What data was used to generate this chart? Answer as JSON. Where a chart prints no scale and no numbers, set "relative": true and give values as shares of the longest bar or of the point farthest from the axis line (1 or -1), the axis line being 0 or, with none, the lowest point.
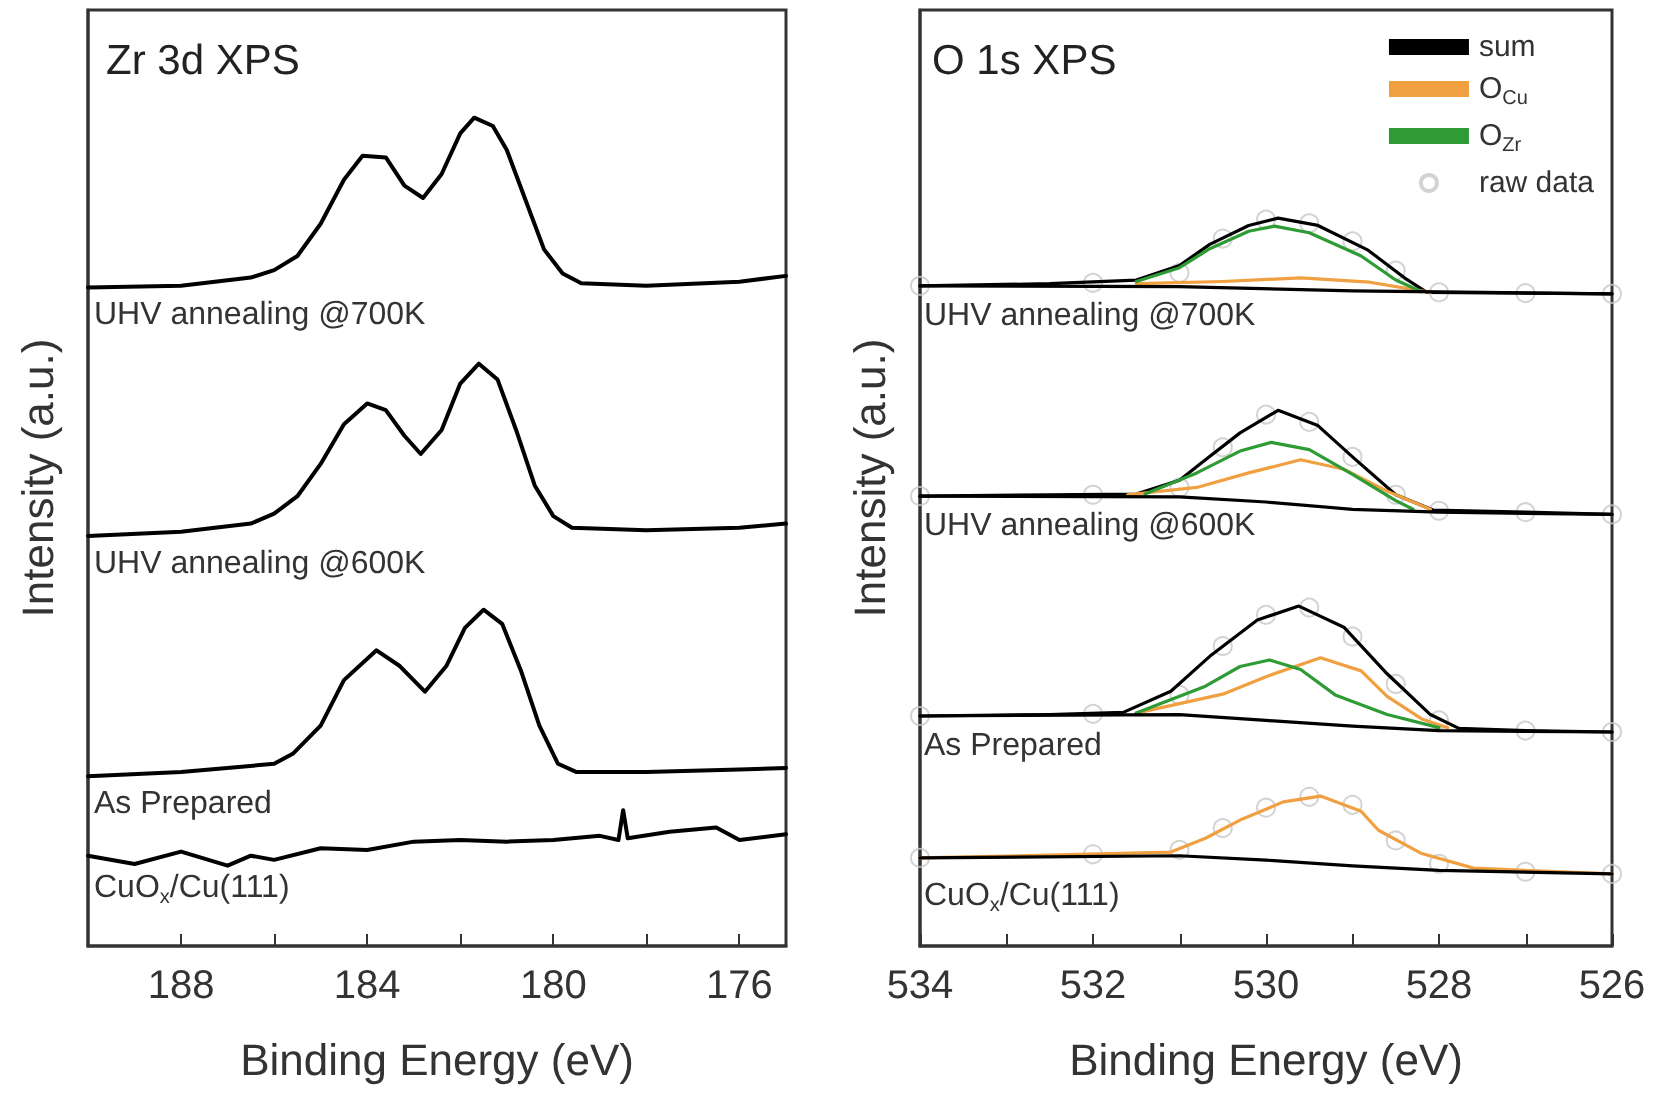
{
  "chart_data": [
    {
      "type": "line",
      "title": "Zr 3d XPS",
      "xlabel": "Binding Energy (eV)",
      "ylabel": "Intensity (a.u.)",
      "relative": true,
      "xlim": [
        190,
        175
      ],
      "xticks": [
        188,
        {
          "value": 186,
          "label": null
        },
        184,
        {
          "value": 182,
          "label": null
        },
        180,
        {
          "value": 178,
          "label": null
        },
        176
      ],
      "series": [
        {
          "name": "UHV annealing @700K",
          "color": "#000000",
          "x": [
            190,
            188,
            186.5,
            186,
            185.5,
            185,
            184.5,
            184.1,
            183.6,
            183.2,
            182.8,
            182.4,
            182,
            181.7,
            181.3,
            181,
            180.6,
            180.2,
            179.8,
            179.4,
            178,
            176,
            175
          ],
          "values": [
            0.795,
            0.797,
            0.807,
            0.816,
            0.833,
            0.872,
            0.925,
            0.954,
            0.952,
            0.918,
            0.903,
            0.932,
            0.981,
            1.0,
            0.99,
            0.961,
            0.901,
            0.841,
            0.812,
            0.8,
            0.797,
            0.802,
            0.809
          ]
        },
        {
          "name": "UHV annealing @600K",
          "color": "#000000",
          "x": [
            190,
            188,
            186.5,
            186,
            185.5,
            185,
            184.5,
            184,
            183.6,
            183.2,
            182.85,
            182.4,
            182,
            181.6,
            181.2,
            180.8,
            180.4,
            180,
            179.6,
            178,
            176,
            175
          ],
          "values": [
            0.495,
            0.5,
            0.51,
            0.522,
            0.543,
            0.582,
            0.63,
            0.655,
            0.647,
            0.616,
            0.594,
            0.623,
            0.679,
            0.703,
            0.684,
            0.623,
            0.556,
            0.519,
            0.505,
            0.502,
            0.505,
            0.51
          ]
        },
        {
          "name": "As Prepared",
          "color": "#000000",
          "x": [
            190,
            188,
            186,
            185.6,
            185,
            184.5,
            183.8,
            183.3,
            182.76,
            182.3,
            181.9,
            181.5,
            181.1,
            180.7,
            180.3,
            179.9,
            179.5,
            178,
            176,
            175
          ],
          "values": [
            0.205,
            0.21,
            0.22,
            0.232,
            0.266,
            0.321,
            0.357,
            0.338,
            0.307,
            0.338,
            0.384,
            0.406,
            0.389,
            0.333,
            0.266,
            0.22,
            0.21,
            0.21,
            0.213,
            0.215
          ]
        },
        {
          "name": "CuO$_{x}$/Cu(111)",
          "color": "#000000",
          "x": [
            190,
            189,
            188,
            187,
            186.5,
            186,
            185,
            184,
            183,
            182,
            181,
            180,
            179,
            178.6,
            178.5,
            178.4,
            177.5,
            176.5,
            176,
            175
          ],
          "values": [
            0.109,
            0.099,
            0.114,
            0.097,
            0.109,
            0.104,
            0.118,
            0.116,
            0.126,
            0.128,
            0.126,
            0.128,
            0.133,
            0.128,
            0.164,
            0.13,
            0.138,
            0.143,
            0.128,
            0.135
          ]
        }
      ]
    },
    {
      "type": "line",
      "title": "O 1s XPS",
      "xlabel": "Binding Energy (eV)",
      "ylabel": "Intensity (a.u.)",
      "relative": true,
      "legend": "top right",
      "xlim": [
        534,
        526
      ],
      "xticks": [
        534,
        {
          "value": 533,
          "label": null
        },
        532,
        {
          "value": 531,
          "label": null
        },
        530,
        {
          "value": 529,
          "label": null
        },
        528,
        {
          "value": 527,
          "label": null
        },
        526
      ],
      "annotations": [
        "UHV annealing @700K",
        "UHV annealing @600K",
        "As Prepared",
        "CuO$_{x}$/Cu(111)"
      ],
      "series": [
        {
          "name": "sum",
          "color": "#000000",
          "x": [
            534,
            532.5,
            531.5,
            531,
            530.65,
            530.2,
            529.86,
            529.4,
            528.82,
            528.4,
            528.14,
            527,
            526
          ],
          "values": [
            0.907,
            0.91,
            0.915,
            0.935,
            0.964,
            0.99,
            1.0,
            0.99,
            0.956,
            0.918,
            0.898,
            0.897,
            0.896
          ]
        },
        {
          "name": "O$_{Cu}$",
          "color": "#f0a040",
          "x": [
            531.5,
            530.5,
            529.6,
            528.8,
            528.1
          ],
          "values": [
            0.91,
            0.913,
            0.918,
            0.912,
            0.898
          ]
        },
        {
          "name": "O$_{Zr}$",
          "color": "#2e9b35",
          "x": [
            531.5,
            531,
            530.65,
            530.2,
            529.9,
            529.5,
            528.9,
            528.5,
            528.2
          ],
          "values": [
            0.913,
            0.932,
            0.958,
            0.982,
            0.989,
            0.98,
            0.948,
            0.915,
            0.899
          ]
        },
        {
          "name": "raw data",
          "type": "scatter",
          "marker": "circle",
          "color": "#c8c8c8",
          "x": [
            534,
            532,
            531,
            530.5,
            530,
            529.5,
            529,
            528.5,
            528,
            527,
            526
          ],
          "values": [
            0.907,
            0.911,
            0.925,
            0.972,
            0.998,
            0.993,
            0.968,
            0.928,
            0.898,
            0.897,
            0.896
          ]
        },
        {
          "color": "#000000",
          "x": [
            534,
            531,
            529,
            526
          ],
          "values": [
            0.907,
            0.906,
            0.9,
            0.896
          ]
        },
        {
          "color": "#000000",
          "x": [
            534,
            532.5,
            531.5,
            531,
            530.7,
            530.3,
            529.86,
            529.4,
            529,
            528.5,
            528.07,
            527,
            526
          ],
          "values": [
            0.618,
            0.62,
            0.621,
            0.64,
            0.668,
            0.705,
            0.736,
            0.715,
            0.672,
            0.62,
            0.599,
            0.596,
            0.593
          ]
        },
        {
          "color": "#f0a040",
          "x": [
            531.6,
            530.8,
            530.2,
            529.6,
            529.1,
            528.6,
            528.1
          ],
          "values": [
            0.62,
            0.63,
            0.65,
            0.668,
            0.655,
            0.625,
            0.6
          ]
        },
        {
          "color": "#2e9b35",
          "x": [
            531.4,
            530.8,
            530.3,
            529.94,
            529.5,
            529,
            528.5,
            528.3
          ],
          "values": [
            0.621,
            0.65,
            0.68,
            0.692,
            0.682,
            0.648,
            0.612,
            0.6
          ]
        },
        {
          "type": "scatter",
          "marker": "circle",
          "color": "#c8c8c8",
          "x": [
            534,
            532,
            531,
            530.5,
            530,
            529.5,
            529,
            528.5,
            528,
            527,
            526
          ],
          "values": [
            0.618,
            0.62,
            0.63,
            0.685,
            0.73,
            0.72,
            0.672,
            0.62,
            0.598,
            0.596,
            0.593
          ]
        },
        {
          "color": "#000000",
          "x": [
            534,
            531,
            530,
            529,
            528,
            526
          ],
          "values": [
            0.618,
            0.617,
            0.61,
            0.6,
            0.596,
            0.593
          ]
        },
        {
          "color": "#000000",
          "x": [
            534,
            532.5,
            531.65,
            531.1,
            530.65,
            530.1,
            529.62,
            529.1,
            528.6,
            528.1,
            527.77,
            527,
            526
          ],
          "values": [
            0.316,
            0.318,
            0.321,
            0.35,
            0.398,
            0.448,
            0.467,
            0.438,
            0.374,
            0.318,
            0.299,
            0.296,
            0.294
          ]
        },
        {
          "color": "#f0a040",
          "x": [
            531.5,
            530.5,
            530,
            529.37,
            528.9,
            528.6,
            528.2,
            527.9
          ],
          "values": [
            0.32,
            0.346,
            0.37,
            0.396,
            0.378,
            0.343,
            0.312,
            0.3
          ]
        },
        {
          "color": "#2e9b35",
          "x": [
            531.5,
            530.7,
            530.3,
            529.96,
            529.6,
            529.2,
            528.6,
            528
          ],
          "values": [
            0.32,
            0.357,
            0.384,
            0.393,
            0.38,
            0.345,
            0.318,
            0.3
          ]
        },
        {
          "type": "scatter",
          "marker": "circle",
          "color": "#c8c8c8",
          "x": [
            534,
            532,
            531,
            530.5,
            530,
            529.5,
            529,
            528.5,
            528,
            527,
            526
          ],
          "values": [
            0.316,
            0.319,
            0.345,
            0.412,
            0.455,
            0.465,
            0.425,
            0.36,
            0.31,
            0.296,
            0.294
          ]
        },
        {
          "color": "#000000",
          "x": [
            534,
            531,
            530,
            529,
            528,
            526
          ],
          "values": [
            0.316,
            0.318,
            0.31,
            0.302,
            0.296,
            0.294
          ]
        },
        {
          "color": "#f0a040",
          "x": [
            534,
            532.5,
            531.1,
            530.7,
            530.3,
            529.8,
            529.37,
            528.9,
            528.7,
            528.2,
            527.6,
            526.8,
            526
          ],
          "values": [
            0.121,
            0.125,
            0.129,
            0.148,
            0.173,
            0.198,
            0.206,
            0.185,
            0.159,
            0.127,
            0.107,
            0.103,
            0.099
          ]
        },
        {
          "type": "scatter",
          "marker": "circle",
          "color": "#c8c8c8",
          "x": [
            534,
            532,
            531,
            530.5,
            530,
            529.5,
            529,
            528.5,
            528,
            527,
            526
          ],
          "values": [
            0.121,
            0.126,
            0.132,
            0.162,
            0.19,
            0.205,
            0.194,
            0.145,
            0.113,
            0.102,
            0.099
          ]
        },
        {
          "color": "#000000",
          "x": [
            534,
            531,
            530,
            529,
            528,
            526
          ],
          "values": [
            0.121,
            0.124,
            0.118,
            0.11,
            0.104,
            0.099
          ]
        }
      ]
    }
  ]
}
